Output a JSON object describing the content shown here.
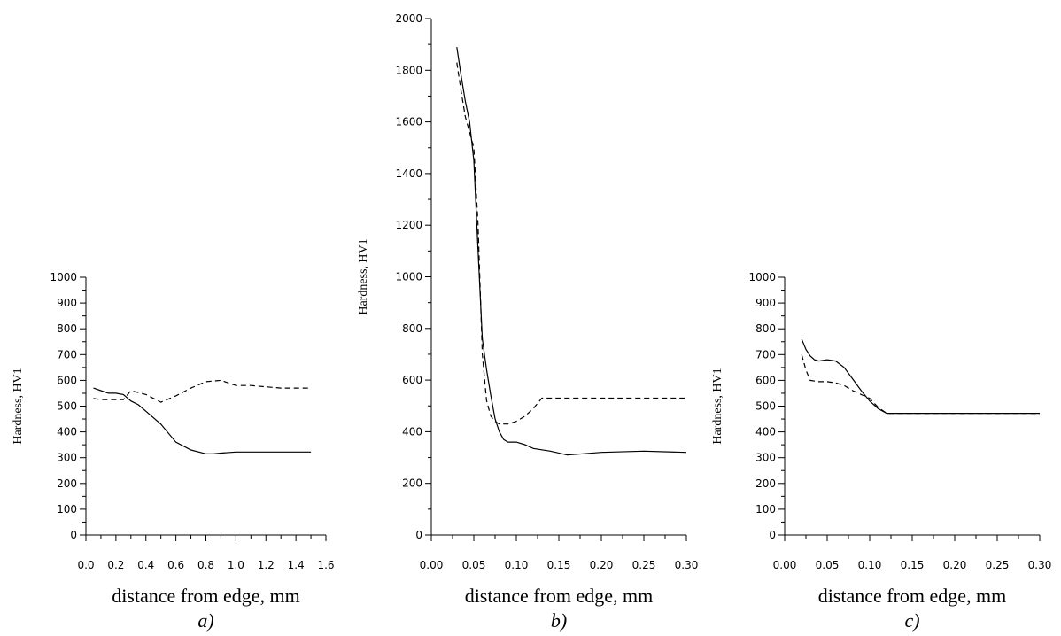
{
  "chart_data": [
    {
      "type": "line",
      "caption": "a)",
      "xlabel": "distance from edge, mm",
      "ylabel": "Hardness, HV1",
      "xlim": [
        0,
        1.6
      ],
      "ylim": [
        0,
        1000
      ],
      "x_ticks": [
        "0.0",
        "0.2",
        "0.4",
        "0.6",
        "0.8",
        "1.0",
        "1.2",
        "1.4",
        "1.6"
      ],
      "y_ticks": [
        "0",
        "100",
        "200",
        "300",
        "400",
        "500",
        "600",
        "700",
        "800",
        "900",
        "1000"
      ],
      "series": [
        {
          "style": "solid",
          "x": [
            0.05,
            0.1,
            0.15,
            0.2,
            0.25,
            0.3,
            0.35,
            0.4,
            0.5,
            0.6,
            0.7,
            0.8,
            0.85,
            0.9,
            1.0,
            1.2,
            1.5
          ],
          "y": [
            570,
            560,
            550,
            550,
            545,
            520,
            505,
            480,
            430,
            360,
            330,
            315,
            315,
            318,
            322,
            322,
            322
          ]
        },
        {
          "style": "dashed",
          "x": [
            0.05,
            0.1,
            0.2,
            0.25,
            0.3,
            0.4,
            0.5,
            0.6,
            0.7,
            0.8,
            0.9,
            0.95,
            1.0,
            1.1,
            1.2,
            1.3,
            1.5
          ],
          "y": [
            530,
            525,
            525,
            525,
            560,
            545,
            515,
            540,
            570,
            595,
            600,
            590,
            580,
            580,
            575,
            570,
            570
          ]
        }
      ]
    },
    {
      "type": "line",
      "caption": "b)",
      "xlabel": "distance from edge, mm",
      "ylabel": "Hardness, HV1",
      "xlim": [
        0,
        0.3
      ],
      "ylim": [
        0,
        2000
      ],
      "x_ticks": [
        "0.00",
        "0.05",
        "0.10",
        "0.15",
        "0.20",
        "0.25",
        "0.30"
      ],
      "y_ticks": [
        "0",
        "200",
        "400",
        "600",
        "800",
        "1000",
        "1200",
        "1400",
        "1600",
        "1800",
        "2000"
      ],
      "series": [
        {
          "style": "solid",
          "x": [
            0.03,
            0.035,
            0.04,
            0.045,
            0.05,
            0.055,
            0.06,
            0.065,
            0.07,
            0.075,
            0.08,
            0.085,
            0.09,
            0.1,
            0.11,
            0.12,
            0.14,
            0.16,
            0.18,
            0.2,
            0.25,
            0.3
          ],
          "y": [
            1890,
            1780,
            1680,
            1600,
            1450,
            1100,
            760,
            640,
            540,
            450,
            400,
            370,
            360,
            360,
            350,
            335,
            325,
            310,
            315,
            320,
            325,
            320
          ]
        },
        {
          "style": "dashed",
          "x": [
            0.03,
            0.035,
            0.04,
            0.045,
            0.05,
            0.055,
            0.06,
            0.065,
            0.07,
            0.075,
            0.08,
            0.09,
            0.1,
            0.11,
            0.12,
            0.13,
            0.15,
            0.2,
            0.25,
            0.3
          ],
          "y": [
            1830,
            1720,
            1620,
            1560,
            1500,
            1200,
            700,
            520,
            460,
            440,
            430,
            430,
            440,
            460,
            490,
            530,
            530,
            530,
            530,
            530
          ]
        }
      ]
    },
    {
      "type": "line",
      "caption": "c)",
      "xlabel": "distance from edge, mm",
      "ylabel": "Hardness, HV1",
      "xlim": [
        0,
        0.3
      ],
      "ylim": [
        0,
        1000
      ],
      "x_ticks": [
        "0.00",
        "0.05",
        "0.10",
        "0.15",
        "0.20",
        "0.25",
        "0.30"
      ],
      "y_ticks": [
        "0",
        "100",
        "200",
        "300",
        "400",
        "500",
        "600",
        "700",
        "800",
        "900",
        "1000"
      ],
      "series": [
        {
          "style": "solid",
          "x": [
            0.02,
            0.025,
            0.03,
            0.035,
            0.04,
            0.05,
            0.06,
            0.07,
            0.08,
            0.09,
            0.1,
            0.11,
            0.12,
            0.15,
            0.2,
            0.25,
            0.3
          ],
          "y": [
            760,
            720,
            695,
            680,
            675,
            680,
            675,
            650,
            605,
            560,
            520,
            490,
            472,
            472,
            472,
            472,
            472
          ]
        },
        {
          "style": "dashed",
          "x": [
            0.02,
            0.025,
            0.03,
            0.04,
            0.05,
            0.06,
            0.07,
            0.08,
            0.09,
            0.1,
            0.11,
            0.12,
            0.15,
            0.2,
            0.25,
            0.3
          ],
          "y": [
            700,
            640,
            600,
            595,
            595,
            590,
            580,
            560,
            545,
            530,
            495,
            472,
            472,
            472,
            472,
            472
          ]
        }
      ]
    }
  ]
}
